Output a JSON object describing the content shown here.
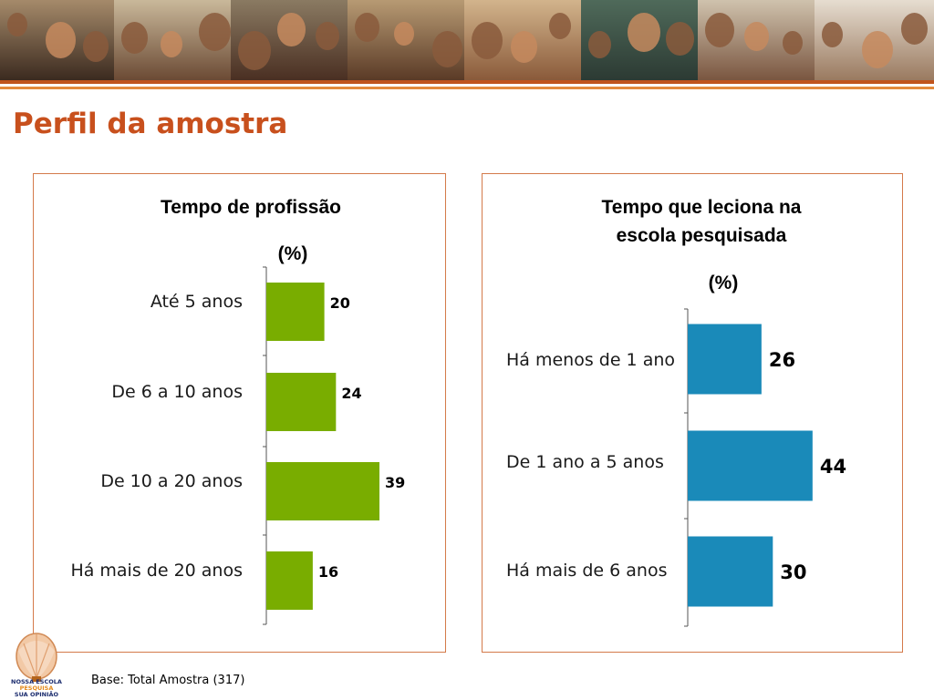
{
  "page": {
    "title": "Perfil da amostra",
    "footnote": "Base: Total Amostra (317)"
  },
  "logo": {
    "line1": "NOSSA ESCOLA",
    "line2": "PESQUISA",
    "line3": "SUA OPINIÃO"
  },
  "colors": {
    "title": "#c8501d",
    "green": "#79ad00",
    "blue": "#1a8ab9",
    "frame": "#d47a4a"
  },
  "chart_data": [
    {
      "type": "bar",
      "orientation": "horizontal",
      "title": "Tempo de profissão",
      "unit": "(%)",
      "categories": [
        "Até 5 anos",
        "De 6 a 10 anos",
        "De 10 a 20 anos",
        "Há mais de 20 anos"
      ],
      "values": [
        20,
        24,
        39,
        16
      ],
      "color": "#79ad00",
      "grid": false
    },
    {
      "type": "bar",
      "orientation": "horizontal",
      "title_lines": [
        "Tempo que leciona na",
        "escola pesquisada"
      ],
      "unit": "(%)",
      "categories": [
        "Há menos de 1 ano",
        "De 1 ano a 5 anos",
        "Há mais de 6 anos"
      ],
      "values": [
        26,
        44,
        30
      ],
      "color": "#1a8ab9",
      "grid": false
    }
  ]
}
